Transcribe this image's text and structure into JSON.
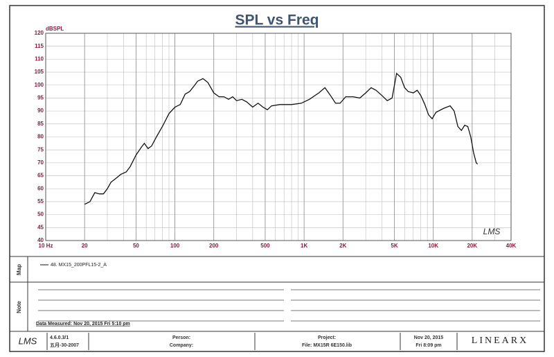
{
  "chart_data": {
    "type": "line",
    "title": "SPL vs Freq",
    "y_label": "dBSPL",
    "watermark": "LMS",
    "log_x": true,
    "grid": true,
    "color": "#111111",
    "xlim": [
      10,
      40000
    ],
    "ylim": [
      40,
      120
    ],
    "xticks": [
      {
        "value": 10,
        "label": "10 Hz"
      },
      20,
      50,
      100,
      200,
      500,
      {
        "value": 1000,
        "label": "1K"
      },
      {
        "value": 2000,
        "label": "2K"
      },
      {
        "value": 5000,
        "label": "5K"
      },
      {
        "value": 10000,
        "label": "10K"
      },
      {
        "value": 20000,
        "label": "20K"
      },
      {
        "value": 40000,
        "label": "40K"
      }
    ],
    "xminorticks": [
      30,
      40,
      60,
      70,
      80,
      90,
      300,
      400,
      600,
      700,
      800,
      900,
      3000,
      4000,
      6000,
      7000,
      8000,
      9000,
      30000
    ],
    "yticks": [
      40,
      45,
      50,
      55,
      60,
      65,
      70,
      75,
      80,
      85,
      90,
      95,
      100,
      105,
      110,
      115,
      120
    ],
    "x": [
      20,
      22,
      24,
      26,
      28,
      30,
      32,
      35,
      38,
      42,
      45,
      50,
      55,
      58,
      62,
      66,
      72,
      80,
      90,
      100,
      110,
      120,
      130,
      140,
      150,
      165,
      180,
      200,
      220,
      240,
      260,
      280,
      300,
      330,
      360,
      400,
      440,
      480,
      520,
      560,
      650,
      800,
      950,
      1100,
      1300,
      1450,
      1600,
      1750,
      1900,
      2100,
      2400,
      2700,
      3000,
      3300,
      3600,
      4000,
      4400,
      4800,
      5200,
      5600,
      6000,
      6400,
      7000,
      7500,
      8000,
      8600,
      9200,
      9800,
      10500,
      12000,
      13500,
      14500,
      15500,
      16500,
      17500,
      18500,
      19500,
      20500,
      21500,
      22000
    ],
    "values": [
      54,
      55,
      58.5,
      58,
      58,
      60,
      62.5,
      64,
      65.5,
      66.5,
      68.5,
      73,
      76,
      77.5,
      75.5,
      76.5,
      80,
      84,
      89,
      91.5,
      92.5,
      96.5,
      97.5,
      99.5,
      101.5,
      102.5,
      101,
      97,
      95.5,
      95.5,
      94.5,
      95.5,
      94,
      94.5,
      93.5,
      91.5,
      93,
      91.5,
      90.5,
      92,
      92.5,
      92.5,
      93,
      94.5,
      97,
      99,
      96,
      93,
      93,
      95.5,
      95.5,
      95,
      97,
      99,
      98,
      96,
      94,
      95,
      104.5,
      103,
      99,
      97.5,
      97,
      98,
      96,
      92.5,
      88.5,
      87,
      89.5,
      91,
      92,
      90,
      84,
      82.5,
      84.5,
      84,
      80,
      74,
      70,
      69.5
    ]
  },
  "map": {
    "label": "Map",
    "entry": "48. MX15_200PFL15-2_A"
  },
  "note": {
    "label": "Note",
    "measured": "Data Measured: Nov 20, 2015  Fri  5:10 pm"
  },
  "footer": {
    "logo": "LMS",
    "version": "4.6.0.3/1",
    "build_date": "五月-30-2007",
    "person": "Person:",
    "company": "Company:",
    "project": "Project:",
    "file": "File: MX15R 6E150.lib",
    "date": "Nov 20, 2015",
    "time": "Fri  8:09 pm",
    "brand": "LINEARX"
  }
}
